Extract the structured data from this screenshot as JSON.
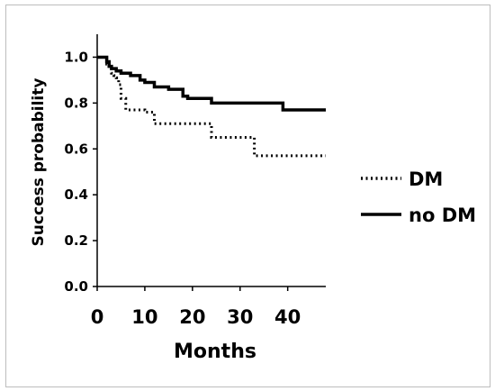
{
  "chart_data": {
    "type": "line",
    "title": "",
    "xlabel": "Months",
    "ylabel": "Success probability",
    "xlim": [
      0,
      48
    ],
    "ylim": [
      0,
      1.1
    ],
    "x_ticks": [
      "0",
      "10",
      "20",
      "30",
      "40"
    ],
    "x_tick_values": [
      0,
      10,
      20,
      30,
      40
    ],
    "y_ticks": [
      "0.0",
      "0.2",
      "0.4",
      "0.6",
      "0.8",
      "1.0"
    ],
    "y_tick_values": [
      0,
      0.2,
      0.4,
      0.6,
      0.8,
      1.0
    ],
    "grid": false,
    "legend_position": "right",
    "series": [
      {
        "name": "DM",
        "style": "dotted",
        "color": "#000000",
        "step_x": [
          0,
          2,
          2.5,
          3,
          3.5,
          4,
          4.5,
          5,
          6,
          10,
          12,
          24,
          25,
          33,
          48
        ],
        "step_y": [
          1.0,
          0.97,
          0.95,
          0.93,
          0.92,
          0.91,
          0.88,
          0.82,
          0.77,
          0.76,
          0.71,
          0.65,
          0.65,
          0.57,
          0.57
        ]
      },
      {
        "name": "no DM",
        "style": "solid",
        "color": "#000000",
        "step_x": [
          0,
          2,
          2.5,
          3,
          4,
          5,
          7,
          9,
          10,
          12,
          15,
          18,
          19,
          24,
          28,
          33,
          39,
          48
        ],
        "step_y": [
          1.0,
          0.98,
          0.96,
          0.95,
          0.94,
          0.93,
          0.92,
          0.9,
          0.89,
          0.87,
          0.86,
          0.83,
          0.82,
          0.8,
          0.8,
          0.8,
          0.77,
          0.77
        ]
      }
    ]
  }
}
